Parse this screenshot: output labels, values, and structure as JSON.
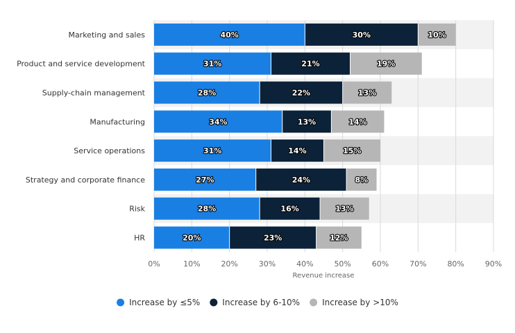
{
  "chart_data": {
    "type": "bar",
    "orientation": "horizontal",
    "stacked": true,
    "categories": [
      "Marketing and sales",
      "Product and service development",
      "Supply-chain management",
      "Manufacturing",
      "Service operations",
      "Strategy and corporate finance",
      "Risk",
      "HR"
    ],
    "series": [
      {
        "name": "Increase by ≤5%",
        "color": "#1a7fe3",
        "values": [
          40,
          31,
          28,
          34,
          31,
          27,
          28,
          20
        ]
      },
      {
        "name": "Increase by 6-10%",
        "color": "#0b2239",
        "values": [
          30,
          21,
          22,
          13,
          14,
          24,
          16,
          23
        ]
      },
      {
        "name": "Increase by >10%",
        "color": "#b6b6b6",
        "values": [
          10,
          19,
          13,
          14,
          15,
          8,
          13,
          12
        ]
      }
    ],
    "data_labels": [
      [
        "40%",
        "31%",
        "28%",
        "34%",
        "31%",
        "27%",
        "28%",
        "20%"
      ],
      [
        "30%",
        "21%",
        "22%",
        "13%",
        "14%",
        "24%",
        "16%",
        "23%"
      ],
      [
        "10%",
        "19%",
        "13%",
        "14%",
        "15%",
        "8%",
        "13%",
        "12%"
      ]
    ],
    "xlabel": "Revenue increase",
    "xlim": [
      0,
      90
    ],
    "xticks": [
      0,
      10,
      20,
      30,
      40,
      50,
      60,
      70,
      80,
      90
    ],
    "xtick_labels": [
      "0%",
      "10%",
      "20%",
      "30%",
      "40%",
      "50%",
      "60%",
      "70%",
      "80%",
      "90%"
    ],
    "grid": true,
    "legend_position": "bottom"
  }
}
